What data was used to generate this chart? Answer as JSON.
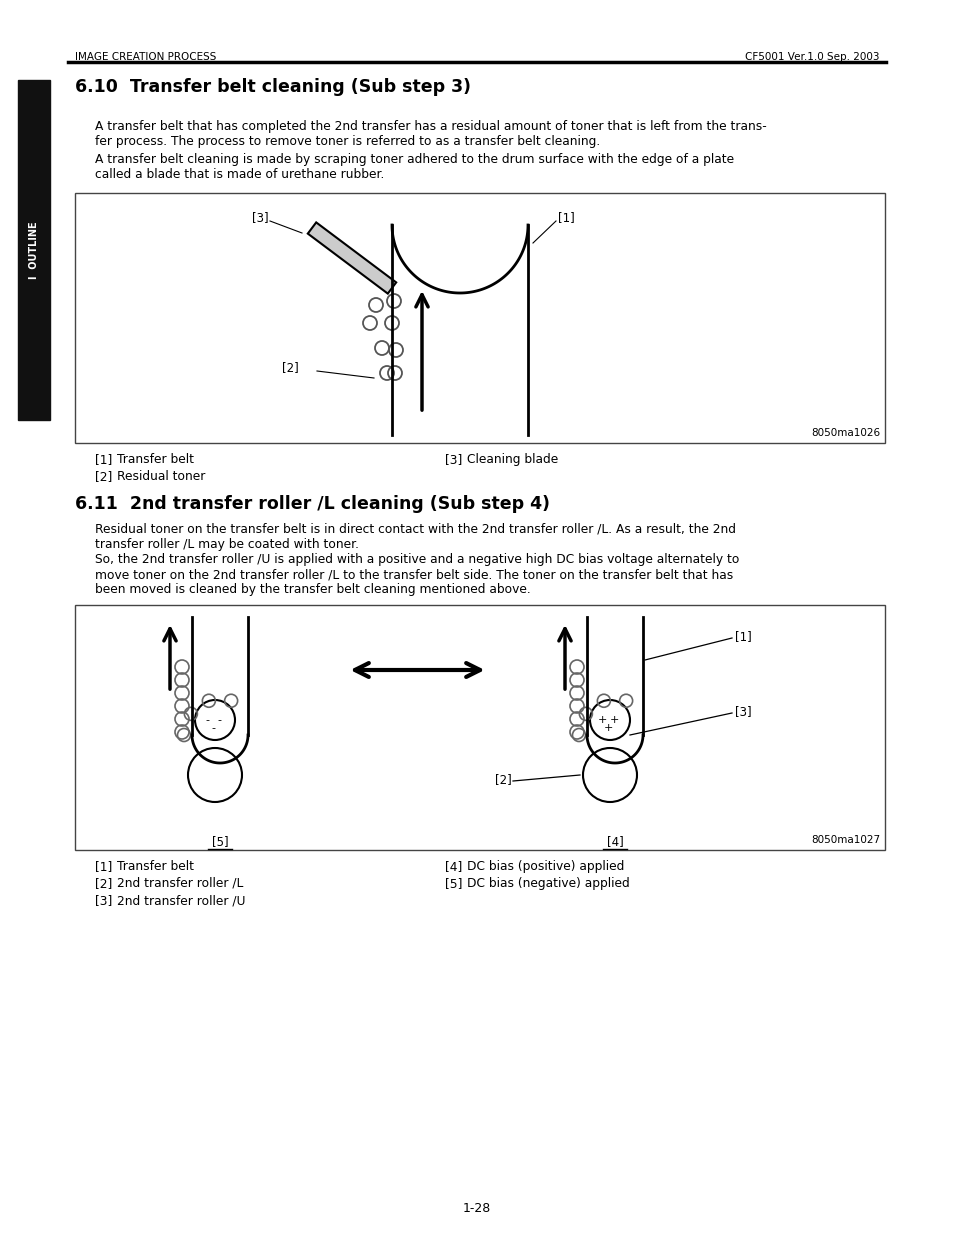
{
  "header_left": "IMAGE CREATION PROCESS",
  "header_right": "CF5001 Ver.1.0 Sep. 2003",
  "section1_title": "6.10  Transfer belt cleaning (Sub step 3)",
  "section1_text1": "A transfer belt that has completed the 2nd transfer has a residual amount of toner that is left from the trans-\nfer process. The process to remove toner is referred to as a transfer belt cleaning.",
  "section1_text2": "A transfer belt cleaning is made by scraping toner adhered to the drum surface with the edge of a plate\ncalled a blade that is made of urethane rubber.",
  "fig1_id": "8050ma1026",
  "fig1_label1": "Transfer belt",
  "fig1_label2": "Residual toner",
  "fig1_label3": "Cleaning blade",
  "section2_title": "6.11  2nd transfer roller /L cleaning (Sub step 4)",
  "section2_text1": "Residual toner on the transfer belt is in direct contact with the 2nd transfer roller /L. As a result, the 2nd\ntransfer roller /L may be coated with toner.",
  "section2_text2": "So, the 2nd transfer roller /U is applied with a positive and a negative high DC bias voltage alternately to\nmove toner on the 2nd transfer roller /L to the transfer belt side. The toner on the transfer belt that has\nbeen moved is cleaned by the transfer belt cleaning mentioned above.",
  "fig2_id": "8050ma1027",
  "fig2_label1": "Transfer belt",
  "fig2_label2": "2nd transfer roller /L",
  "fig2_label3": "2nd transfer roller /U",
  "fig2_label4": "DC bias (positive) applied",
  "fig2_label5": "DC bias (negative) applied",
  "sidebar_text": "I  OUTLINE",
  "page_number": "1-28"
}
